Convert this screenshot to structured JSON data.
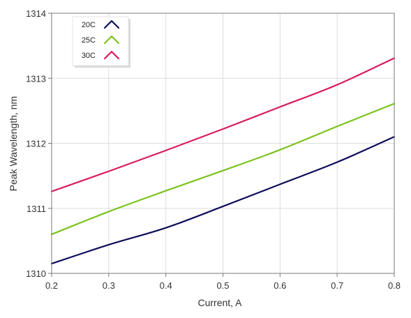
{
  "chart_data": {
    "type": "line",
    "title": "",
    "xlabel": "Current, A",
    "ylabel": "Peak Wavelength, nm",
    "xlim": [
      0.2,
      0.8
    ],
    "ylim": [
      1310,
      1314
    ],
    "x_ticks": [
      "0.2",
      "0.3",
      "0.4",
      "0.5",
      "0.6",
      "0.7",
      "0.8"
    ],
    "y_ticks": [
      "1310",
      "1311",
      "1312",
      "1313",
      "1314"
    ],
    "grid": true,
    "legend_position": "top-left",
    "series": [
      {
        "name": "20C",
        "color": "#0d0d5a",
        "x": [
          0.2,
          0.3,
          0.4,
          0.5,
          0.6,
          0.7,
          0.8
        ],
        "y": [
          1310.15,
          1310.44,
          1310.7,
          1311.03,
          1311.37,
          1311.71,
          1312.1
        ]
      },
      {
        "name": "25C",
        "color": "#7ac31e",
        "x": [
          0.2,
          0.3,
          0.4,
          0.5,
          0.6,
          0.7,
          0.8
        ],
        "y": [
          1310.6,
          1310.95,
          1311.27,
          1311.58,
          1311.9,
          1312.26,
          1312.61
        ]
      },
      {
        "name": "30C",
        "color": "#d81b60",
        "x": [
          0.2,
          0.3,
          0.4,
          0.5,
          0.6,
          0.7,
          0.8
        ],
        "y": [
          1311.26,
          1311.57,
          1311.89,
          1312.22,
          1312.56,
          1312.9,
          1313.31
        ]
      }
    ]
  }
}
